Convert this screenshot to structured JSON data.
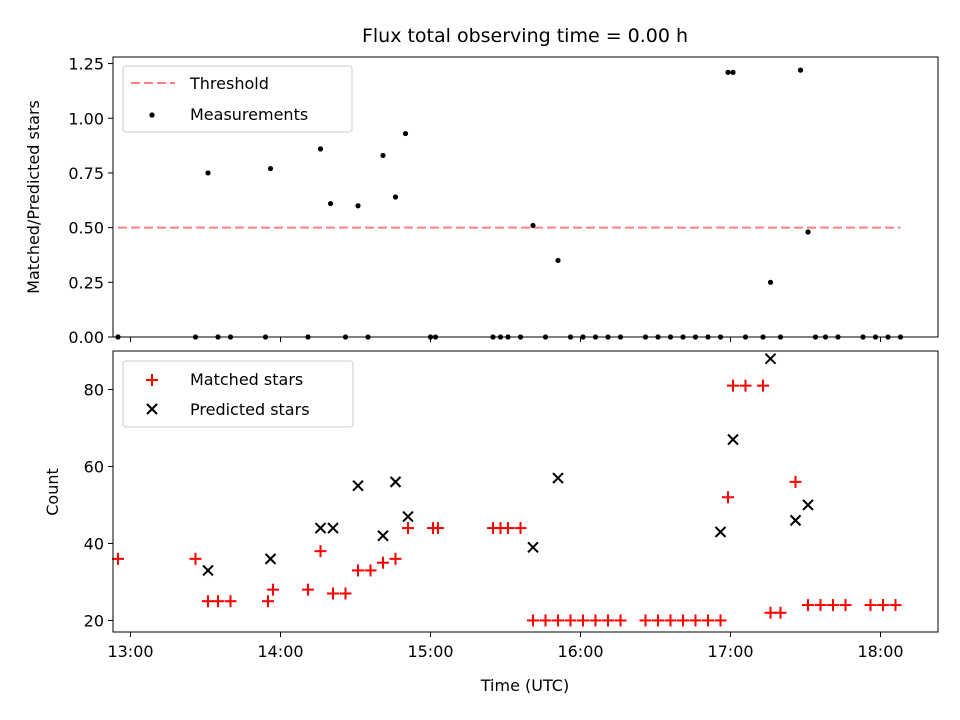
{
  "figure": {
    "title": "Flux total observing time = 0.00 h"
  },
  "colors": {
    "threshold": "#ff7f7f",
    "measurement": "#000000",
    "matched": "#ff0000",
    "predicted": "#000000"
  },
  "chart_data": [
    {
      "type": "scatter",
      "title": "Flux total observing time = 0.00 h",
      "xlabel": "",
      "ylabel": "Matched/Predicted stars",
      "xlim": [
        "12:53",
        "18:23"
      ],
      "ylim": [
        0,
        1.28
      ],
      "yticks": [
        0.0,
        0.25,
        0.5,
        0.75,
        1.0,
        1.25
      ],
      "ytick_labels": [
        "0.00",
        "0.25",
        "0.50",
        "0.75",
        "1.00",
        "1.25"
      ],
      "legend": {
        "placement": "upper-left",
        "entries": [
          "Threshold",
          "Measurements"
        ]
      },
      "series": [
        {
          "name": "Threshold",
          "kind": "dashed-line",
          "x": [
            "12:55",
            "18:08"
          ],
          "y": [
            0.5,
            0.5
          ]
        },
        {
          "name": "Measurements",
          "kind": "points",
          "x": [
            "12:55",
            "13:26",
            "13:31",
            "13:35",
            "13:40",
            "13:54",
            "13:56",
            "14:11",
            "14:16",
            "14:20",
            "14:26",
            "14:31",
            "14:35",
            "14:41",
            "14:46",
            "14:50",
            "15:00",
            "15:02",
            "15:25",
            "15:28",
            "15:31",
            "15:36",
            "15:41",
            "15:46",
            "15:51",
            "15:56",
            "16:01",
            "16:06",
            "16:11",
            "16:16",
            "16:26",
            "16:31",
            "16:36",
            "16:41",
            "16:46",
            "16:51",
            "16:56",
            "16:59",
            "17:01",
            "17:06",
            "17:13",
            "17:16",
            "17:20",
            "17:28",
            "17:31",
            "17:34",
            "17:38",
            "17:43",
            "17:53",
            "17:58",
            "18:03",
            "18:08"
          ],
          "y": [
            0.0,
            0.0,
            0.75,
            0.0,
            0.0,
            0.0,
            0.77,
            0.0,
            0.86,
            0.61,
            0.0,
            0.6,
            0.0,
            0.83,
            0.64,
            0.93,
            0.0,
            0.0,
            0.0,
            0.0,
            0.0,
            0.0,
            0.51,
            0.0,
            0.35,
            0.0,
            0.0,
            0.0,
            0.0,
            0.0,
            0.0,
            0.0,
            0.0,
            0.0,
            0.0,
            0.0,
            0.0,
            1.21,
            1.21,
            0.0,
            0.0,
            0.25,
            0.0,
            1.22,
            0.48,
            0.0,
            0.0,
            0.0,
            0.0,
            0.0,
            0.0,
            0.0
          ]
        }
      ]
    },
    {
      "type": "scatter",
      "title": "",
      "xlabel": "Time (UTC)",
      "ylabel": "Count",
      "xlim": [
        "12:53",
        "18:23"
      ],
      "ylim": [
        17,
        90
      ],
      "xticks": [
        "13:00",
        "14:00",
        "15:00",
        "16:00",
        "17:00",
        "18:00"
      ],
      "yticks": [
        20,
        40,
        60,
        80
      ],
      "legend": {
        "placement": "upper-left",
        "entries": [
          "Matched stars",
          "Predicted stars"
        ]
      },
      "series": [
        {
          "name": "Matched stars",
          "kind": "plus-markers",
          "x": [
            "12:55",
            "13:26",
            "13:31",
            "13:35",
            "13:40",
            "13:55",
            "13:57",
            "14:11",
            "14:16",
            "14:21",
            "14:26",
            "14:31",
            "14:36",
            "14:41",
            "14:46",
            "14:51",
            "15:01",
            "15:03",
            "15:25",
            "15:28",
            "15:31",
            "15:36",
            "15:41",
            "15:46",
            "15:51",
            "15:56",
            "16:01",
            "16:06",
            "16:11",
            "16:16",
            "16:26",
            "16:31",
            "16:36",
            "16:41",
            "16:46",
            "16:51",
            "16:56",
            "16:59",
            "17:01",
            "17:06",
            "17:13",
            "17:16",
            "17:20",
            "17:26",
            "17:31",
            "17:36",
            "17:41",
            "17:46",
            "17:56",
            "18:01",
            "18:06"
          ],
          "y": [
            36,
            36,
            25,
            25,
            25,
            25,
            28,
            28,
            38,
            27,
            27,
            33,
            33,
            35,
            36,
            44,
            44,
            44,
            44,
            44,
            44,
            44,
            20,
            20,
            20,
            20,
            20,
            20,
            20,
            20,
            20,
            20,
            20,
            20,
            20,
            20,
            20,
            52,
            81,
            81,
            81,
            22,
            22,
            56,
            24,
            24,
            24,
            24,
            24,
            24,
            24
          ]
        },
        {
          "name": "Predicted stars",
          "kind": "x-markers",
          "x": [
            "13:31",
            "13:56",
            "14:16",
            "14:21",
            "14:31",
            "14:41",
            "14:46",
            "14:51",
            "15:41",
            "15:51",
            "16:56",
            "17:01",
            "17:16",
            "17:26",
            "17:31"
          ],
          "y": [
            33,
            36,
            44,
            44,
            55,
            42,
            56,
            47,
            39,
            57,
            43,
            67,
            88,
            46,
            50
          ]
        }
      ]
    }
  ]
}
